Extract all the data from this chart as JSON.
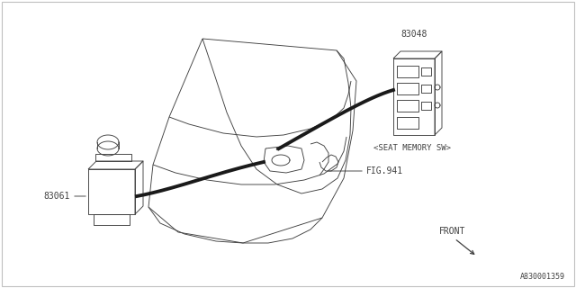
{
  "background_color": "#ffffff",
  "border_color": "#c0c0c0",
  "line_color": "#404040",
  "text_color": "#404040",
  "part_number_83048": "83048",
  "part_number_83061": "83061",
  "label_seat_memory": "<SEAT MEMORY SW>",
  "label_fig941": "FIG.941",
  "label_front": "FRONT",
  "label_bottom_right": "A830001359",
  "fig_width": 6.4,
  "fig_height": 3.2,
  "dpi": 100
}
